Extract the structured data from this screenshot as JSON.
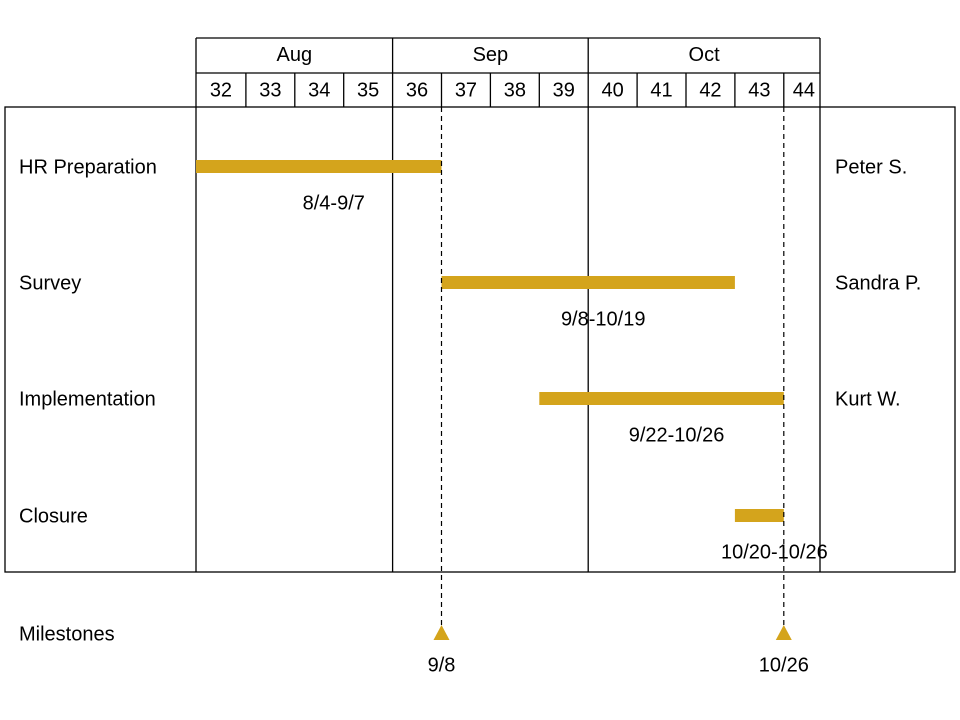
{
  "chart_data": {
    "type": "gantt",
    "months": [
      {
        "label": "Aug",
        "first_week": 32,
        "last_week": 35
      },
      {
        "label": "Sep",
        "first_week": 36,
        "last_week": 39
      },
      {
        "label": "Oct",
        "first_week": 40,
        "last_week": 44
      }
    ],
    "weeks": [
      32,
      33,
      34,
      35,
      36,
      37,
      38,
      39,
      40,
      41,
      42,
      43,
      44
    ],
    "tasks": [
      {
        "name": "HR Preparation",
        "owner": "Peter S.",
        "start_week": 32.0,
        "end_week": 37.0,
        "label": "8/4-9/7"
      },
      {
        "name": "Survey",
        "owner": "Sandra P.",
        "start_week": 37.0,
        "end_week": 43.0,
        "label": "9/8-10/19"
      },
      {
        "name": "Implementation",
        "owner": "Kurt W.",
        "start_week": 39.0,
        "end_week": 44.0,
        "label": "9/22-10/26"
      },
      {
        "name": "Closure",
        "owner": "",
        "start_week": 43.0,
        "end_week": 44.0,
        "label": "10/20-10/26"
      }
    ],
    "milestones_label": "Milestones",
    "milestones": [
      {
        "label": "9/8",
        "week": 37.0
      },
      {
        "label": "10/26",
        "week": 44.0
      }
    ],
    "bar_color": "#d4a41c"
  }
}
